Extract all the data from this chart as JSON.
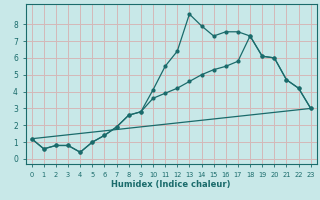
{
  "xlabel": "Humidex (Indice chaleur)",
  "background_color": "#c8e8e8",
  "grid_color": "#d4b8b8",
  "line_color": "#1a6b6b",
  "xlim": [
    -0.5,
    23.5
  ],
  "ylim": [
    -0.3,
    9.2
  ],
  "xticks": [
    0,
    1,
    2,
    3,
    4,
    5,
    6,
    7,
    8,
    9,
    10,
    11,
    12,
    13,
    14,
    15,
    16,
    17,
    18,
    19,
    20,
    21,
    22,
    23
  ],
  "yticks": [
    0,
    1,
    2,
    3,
    4,
    5,
    6,
    7,
    8
  ],
  "series1_x": [
    0,
    1,
    2,
    3,
    4,
    5,
    6,
    7,
    8,
    9,
    10,
    11,
    12,
    13,
    14,
    15,
    16,
    17,
    18,
    19,
    20,
    21,
    22,
    23
  ],
  "series1_y": [
    1.2,
    0.6,
    0.8,
    0.8,
    0.4,
    1.0,
    1.4,
    1.9,
    2.6,
    2.8,
    4.1,
    5.5,
    6.4,
    8.6,
    7.9,
    7.3,
    7.55,
    7.55,
    7.3,
    6.1,
    6.0,
    4.7,
    4.2,
    3.0
  ],
  "series2_x": [
    0,
    1,
    2,
    3,
    4,
    5,
    6,
    7,
    8,
    9,
    10,
    11,
    12,
    13,
    14,
    15,
    16,
    17,
    18,
    19,
    20,
    21,
    22,
    23
  ],
  "series2_y": [
    1.2,
    0.6,
    0.8,
    0.8,
    0.4,
    1.0,
    1.4,
    1.9,
    2.6,
    2.8,
    3.6,
    3.9,
    4.2,
    4.6,
    5.0,
    5.3,
    5.5,
    5.8,
    7.3,
    6.1,
    6.0,
    4.7,
    4.2,
    3.0
  ],
  "series3_x": [
    0,
    23
  ],
  "series3_y": [
    1.2,
    3.0
  ]
}
